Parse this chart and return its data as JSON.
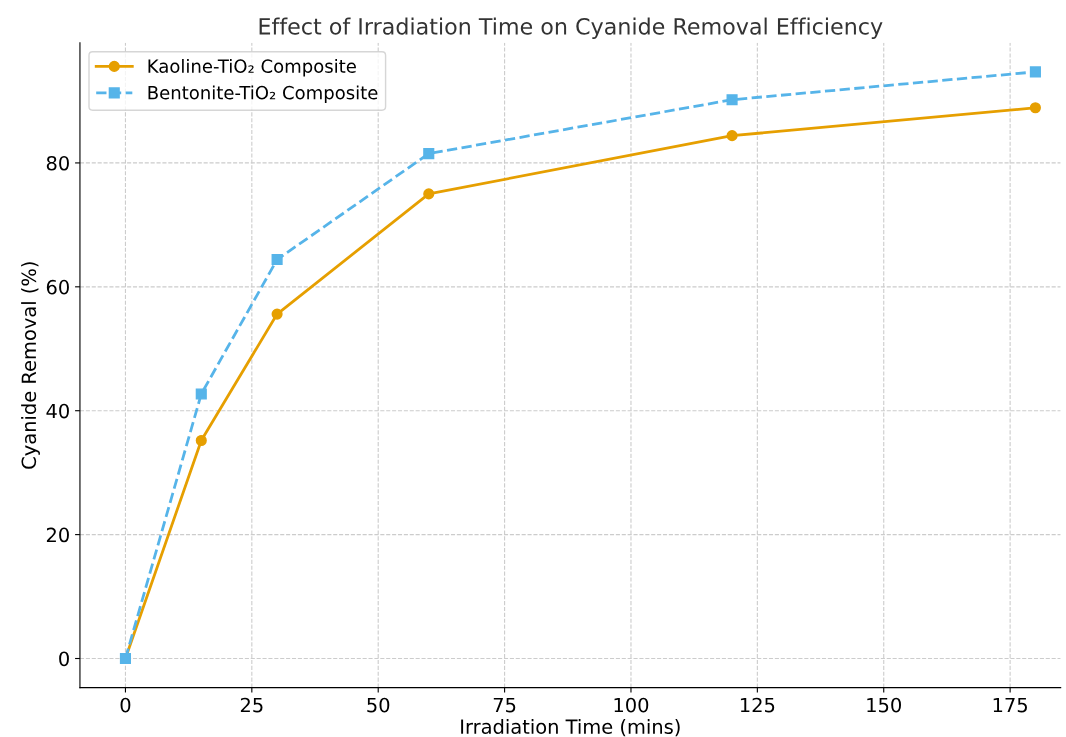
{
  "chart_data": {
    "type": "line",
    "title": "Effect of Irradiation Time on Cyanide Removal Efficiency",
    "xlabel": "Irradiation Time (mins)",
    "ylabel": "Cyanide Removal (%)",
    "x": [
      0,
      15,
      30,
      60,
      120,
      180
    ],
    "series": [
      {
        "name": "Kaoline-TiO₂ Composite",
        "color": "#e69f00",
        "values": [
          0,
          35.2,
          55.6,
          75.0,
          84.4,
          88.9
        ],
        "marker": "circle",
        "line_style": "solid"
      },
      {
        "name": "Bentonite-TiO₂ Composite",
        "color": "#56b4e9",
        "values": [
          0,
          42.7,
          64.4,
          81.5,
          90.2,
          94.7
        ],
        "marker": "square",
        "line_style": "dashed"
      }
    ],
    "xlim": [
      -9,
      185
    ],
    "ylim": [
      -4.7,
      99.4
    ],
    "xticks": [
      0,
      25,
      50,
      75,
      100,
      125,
      150,
      175
    ],
    "yticks": [
      0,
      20,
      40,
      60,
      80
    ],
    "grid": true,
    "legend": "top left"
  }
}
